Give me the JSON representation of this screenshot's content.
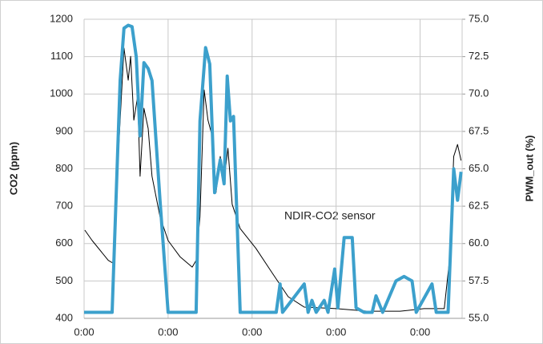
{
  "chart_data": {
    "type": "line",
    "annotation": "NDIR-CO2 sensor",
    "y_label": "CO2 (ppm)",
    "y2_label": "PWM_out (%)",
    "xlim": [
      0,
      108
    ],
    "xticks": [
      {
        "value": 0,
        "label": "0:00"
      },
      {
        "value": 24,
        "label": "0:00"
      },
      {
        "value": 48,
        "label": "0:00"
      },
      {
        "value": 72,
        "label": "0:00"
      },
      {
        "value": 96,
        "label": "0:00"
      }
    ],
    "ylim": [
      400,
      1200
    ],
    "yticks": [
      400,
      500,
      600,
      700,
      800,
      900,
      1000,
      1100,
      1200
    ],
    "y2lim": [
      55,
      75
    ],
    "y2ticks": [
      {
        "value": 55,
        "label": "55.0"
      },
      57.5,
      {
        "value": 60,
        "label": "60.0"
      },
      62.5,
      {
        "value": 65,
        "label": "65.0"
      },
      67.5,
      {
        "value": 70,
        "label": "70.0"
      },
      72.5,
      {
        "value": 75,
        "label": "75.0"
      }
    ],
    "grid": true,
    "series": [
      {
        "color": "#000000",
        "axis": "y",
        "x": [
          0.2,
          2.3,
          6.9,
          8.2,
          10.3,
          11.4,
          12.6,
          13.3,
          14.2,
          15.3,
          16,
          17.1,
          18.3,
          19.4,
          21.7,
          24,
          27.4,
          30.9,
          32,
          33.1,
          34.3,
          35.4,
          36.6,
          37.7,
          38.9,
          40,
          41.1,
          42.3,
          44.6,
          49.1,
          53.7,
          58.3,
          62.9,
          72,
          81.1,
          90.3,
          97.1,
          102.9,
          104.5,
          105.6,
          106.7,
          107.7
        ],
        "values": [
          636,
          608,
          555,
          548,
          930,
          1123,
          1037,
          1101,
          930,
          994,
          780,
          962,
          908,
          780,
          672,
          608,
          565,
          537,
          555,
          672,
          1011,
          930,
          887,
          737,
          833,
          769,
          855,
          705,
          640,
          587,
          522,
          458,
          430,
          426,
          419,
          419,
          426,
          426,
          565,
          833,
          865,
          822
        ]
      },
      {
        "color": "#3ca0cc",
        "axis": "y2",
        "x": [
          0,
          8,
          10.3,
          11.4,
          12.6,
          13.7,
          14.9,
          16,
          17.1,
          18.3,
          19.4,
          21.7,
          24,
          32,
          33.1,
          34.7,
          35.9,
          37.3,
          38.9,
          40,
          40.9,
          41.8,
          42.7,
          44.6,
          54.9,
          56,
          56.7,
          62.9,
          64,
          65.1,
          66.3,
          68.6,
          69.7,
          71.6,
          72.5,
          74.3,
          76.6,
          77.7,
          80,
          82.3,
          83.4,
          85.3,
          89.1,
          91.4,
          93.7,
          94.9,
          99.4,
          100.6,
          104,
          105.6,
          106.7,
          107.7
        ],
        "values": [
          55.4,
          55.4,
          70.9,
          74.4,
          74.6,
          74.5,
          72.5,
          67.2,
          72.1,
          71.7,
          70.9,
          62.9,
          55.4,
          55.4,
          68.2,
          73.1,
          72.0,
          63.4,
          65.6,
          64.0,
          71.2,
          68.2,
          68.5,
          55.4,
          55.4,
          57.3,
          55.4,
          57.3,
          55.4,
          56.2,
          55.4,
          56.2,
          55.4,
          58.3,
          55.7,
          60.4,
          60.4,
          55.7,
          55.4,
          55.4,
          56.5,
          55.4,
          57.5,
          57.8,
          57.5,
          55.4,
          57.3,
          55.4,
          55.4,
          65.0,
          62.9,
          64.8
        ]
      }
    ]
  }
}
